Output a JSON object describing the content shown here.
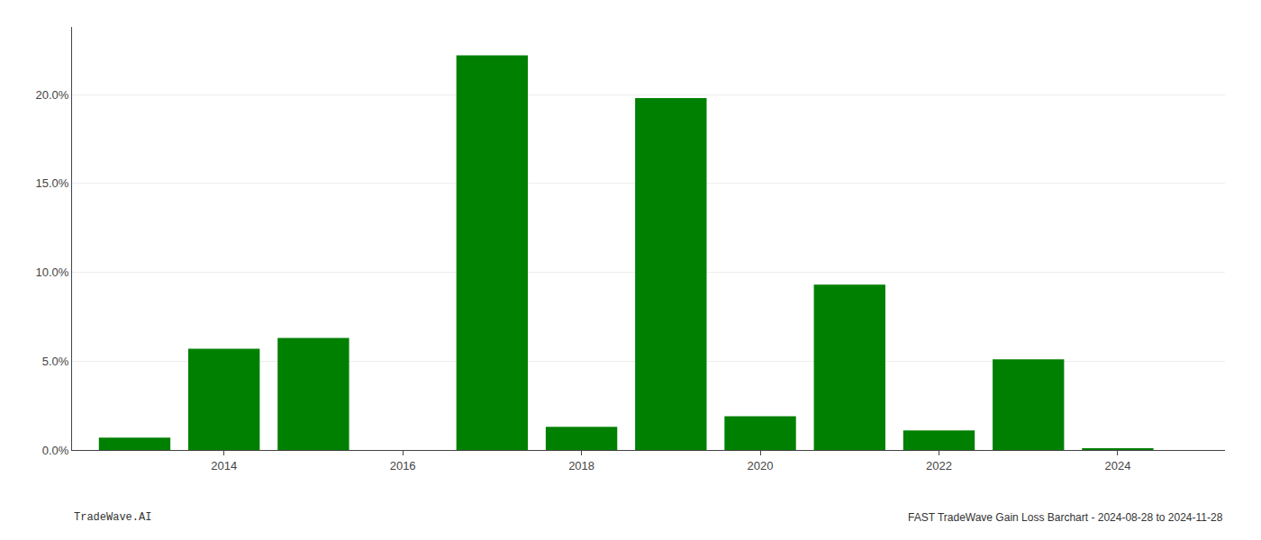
{
  "chart_data": {
    "type": "bar",
    "title": "FAST TradeWave Gain Loss Barchart - 2024-08-28 to 2024-11-28",
    "annotations": [
      "TradeWave.AI"
    ],
    "x": [
      2013,
      2014,
      2015,
      2017,
      2018,
      2019,
      2020,
      2021,
      2022,
      2023,
      2024
    ],
    "values": [
      0.007,
      0.057,
      0.063,
      0.222,
      0.013,
      0.198,
      0.019,
      0.093,
      0.011,
      0.051,
      0.001
    ],
    "color": "#008000",
    "xlim": [
      2012.3,
      2025.2
    ],
    "xticks": [
      2014,
      2016,
      2018,
      2020,
      2022,
      2024
    ],
    "ylim": [
      0,
      0.238
    ],
    "yticks": [
      {
        "value": 0.0,
        "label": "0.0%"
      },
      {
        "value": 0.05,
        "label": "5.0%"
      },
      {
        "value": 0.1,
        "label": "10.0%"
      },
      {
        "value": 0.15,
        "label": "15.0%"
      },
      {
        "value": 0.2,
        "label": "20.0%"
      }
    ],
    "grid": true
  }
}
